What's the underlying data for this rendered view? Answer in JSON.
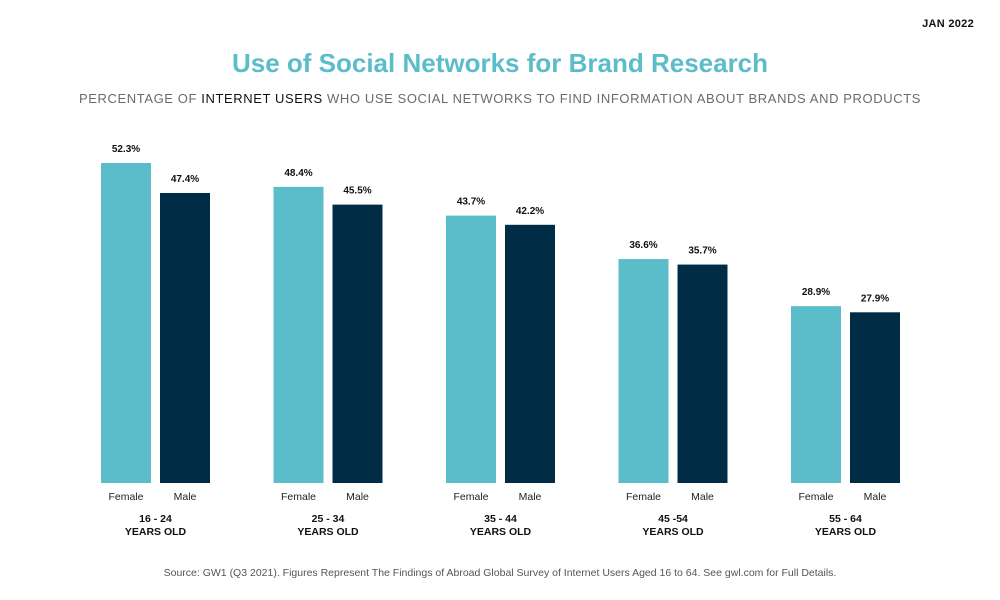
{
  "header": {
    "date": "JAN 2022",
    "title": "Use of Social Networks for Brand Research",
    "subtitle_pre": "PERCENTAGE OF ",
    "subtitle_strong": "INTERNET USERS",
    "subtitle_post": " WHO USE SOCIAL NETWORKS TO FIND INFORMATION ABOUT BRANDS AND PRODUCTS"
  },
  "footer": {
    "source": "Source: GW1 (Q3 2021). Figures Represent The Findings of Abroad Global Survey of Internet Users Aged 16 to 64. See gwl.com for Full Details."
  },
  "colors": {
    "female": "#5bbcca",
    "male": "#002d45",
    "title": "#5bbcca"
  },
  "chart_data": {
    "type": "bar",
    "title": "Use of Social Networks for Brand Research",
    "categories": [
      [
        "16 - 24",
        "YEARS OLD"
      ],
      [
        "25 - 34",
        "YEARS OLD"
      ],
      [
        "35 - 44",
        "YEARS OLD"
      ],
      [
        "45 -54",
        "YEARS OLD"
      ],
      [
        "55 - 64",
        "YEARS OLD"
      ]
    ],
    "series": [
      {
        "name": "Female",
        "values": [
          52.3,
          48.4,
          43.7,
          36.6,
          28.9
        ],
        "labels": [
          "52.3%",
          "48.4%",
          "43.7%",
          "36.6%",
          "28.9%"
        ]
      },
      {
        "name": "Male",
        "values": [
          47.4,
          45.5,
          42.2,
          35.7,
          27.9
        ],
        "labels": [
          "47.4%",
          "45.5%",
          "42.2%",
          "35.7%",
          "27.9%"
        ]
      }
    ],
    "ylim": [
      0,
      52.3
    ],
    "grid": false,
    "legend": "none"
  }
}
